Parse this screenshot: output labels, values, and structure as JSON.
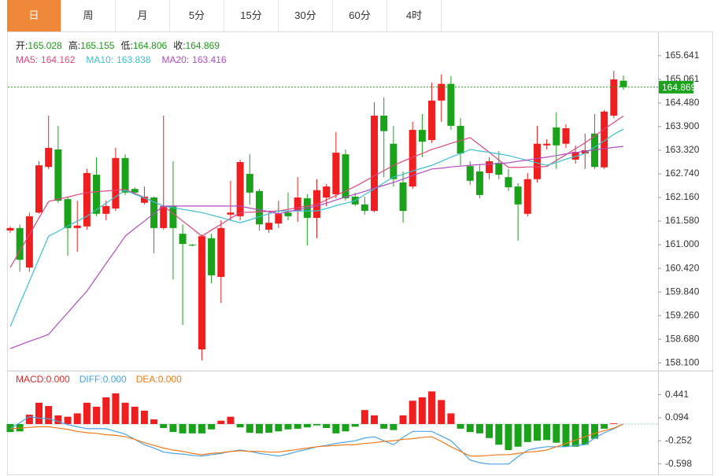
{
  "tabs": [
    "日",
    "周",
    "月",
    "5分",
    "15分",
    "30分",
    "60分",
    "4时"
  ],
  "active_tab": 0,
  "chart_data": [
    {
      "type": "candlestick",
      "ohlc_labels": [
        "开:",
        "高:",
        "低:",
        "收:"
      ],
      "open": [
        161.35,
        161.41,
        160.44,
        161.79,
        162.91,
        163.34,
        162.12,
        161.41,
        161.45,
        162.72,
        161.76,
        161.89,
        163.13,
        162.37,
        162.03,
        162.16,
        161.41,
        161.95,
        161.27,
        161.0,
        158.43,
        161.16,
        160.21,
        161.74,
        161.7,
        162.74,
        162.32,
        161.37,
        161.52,
        161.79,
        161.83,
        162.14,
        161.66,
        162.16,
        162.24,
        163.22,
        162.18,
        161.99,
        161.83,
        164.17,
        163.48,
        162.53,
        162.43,
        163.82,
        163.57,
        164.54,
        164.95,
        163.92,
        162.93,
        162.8,
        162.76,
        163.01,
        162.66,
        162.43,
        161.76,
        162.61,
        163.44,
        163.88,
        163.48,
        163.09,
        163.24,
        163.73,
        162.9,
        164.17,
        165.028
      ],
      "high": [
        161.45,
        161.5,
        161.79,
        163.05,
        164.17,
        163.92,
        162.18,
        162.08,
        162.86,
        163.15,
        162.08,
        163.38,
        163.22,
        162.41,
        162.43,
        162.18,
        164.17,
        163.05,
        161.5,
        161.02,
        161.25,
        161.27,
        161.6,
        162.57,
        163.09,
        163.22,
        162.37,
        161.79,
        162.08,
        162.28,
        162.66,
        162.24,
        162.61,
        162.49,
        163.77,
        163.34,
        162.28,
        162.18,
        164.5,
        164.62,
        163.92,
        162.8,
        164.02,
        164.21,
        164.98,
        165.18,
        165.14,
        164.11,
        163.05,
        162.95,
        163.15,
        163.3,
        162.86,
        162.51,
        162.76,
        163.92,
        163.59,
        164.25,
        163.96,
        163.44,
        163.73,
        164.21,
        164.31,
        165.27,
        165.155
      ],
      "low": [
        161.29,
        160.34,
        160.34,
        161.76,
        162.86,
        162.03,
        160.73,
        160.83,
        161.37,
        161.7,
        161.6,
        161.83,
        162.22,
        162.24,
        161.99,
        160.79,
        161.37,
        160.15,
        159.03,
        160.96,
        158.16,
        160.05,
        159.57,
        161.6,
        161.6,
        161.99,
        161.35,
        161.29,
        161.41,
        161.6,
        161.56,
        160.98,
        161.16,
        161.95,
        162.14,
        162.08,
        161.95,
        161.74,
        161.79,
        162.66,
        162.43,
        161.54,
        162.37,
        163.15,
        163.5,
        164.02,
        163.82,
        162.95,
        162.47,
        162.14,
        162.61,
        162.61,
        162.32,
        161.1,
        161.7,
        162.53,
        163.34,
        162.86,
        163.38,
        162.99,
        162.86,
        162.86,
        162.86,
        164.11,
        164.806
      ],
      "close": [
        161.41,
        160.63,
        161.7,
        162.95,
        163.38,
        162.08,
        161.41,
        161.47,
        162.76,
        161.76,
        161.95,
        163.13,
        162.28,
        162.28,
        162.18,
        161.41,
        161.95,
        161.41,
        161.02,
        160.98,
        161.21,
        160.25,
        161.41,
        161.79,
        163.03,
        162.28,
        161.5,
        161.54,
        161.76,
        161.7,
        162.16,
        161.66,
        162.34,
        162.43,
        163.26,
        162.14,
        161.99,
        161.83,
        164.17,
        163.79,
        162.61,
        161.83,
        163.82,
        163.53,
        164.54,
        164.95,
        163.92,
        163.24,
        162.57,
        162.22,
        163.05,
        162.72,
        162.41,
        161.99,
        162.61,
        163.48,
        163.48,
        163.44,
        163.86,
        163.28,
        163.32,
        162.91,
        164.27,
        165.06,
        164.869
      ],
      "up_color": "#f01e1e",
      "down_color": "#1aa31a",
      "series": [
        {
          "name": "MA5:",
          "color": "#e0457f",
          "values": [
            160.44,
            160.85,
            161.25,
            161.66,
            162.06,
            162.12,
            162.17,
            162.23,
            162.28,
            162.3,
            162.32,
            162.34,
            162.36,
            162.26,
            162.16,
            162.05,
            161.95,
            161.77,
            161.58,
            161.4,
            161.21,
            161.36,
            161.5,
            161.65,
            161.79,
            161.8,
            161.81,
            161.82,
            161.83,
            161.87,
            161.91,
            161.95,
            161.99,
            162.1,
            162.21,
            162.32,
            162.43,
            162.56,
            162.69,
            162.82,
            162.95,
            163.05,
            163.15,
            163.24,
            163.34,
            163.41,
            163.49,
            163.56,
            163.63,
            163.45,
            163.27,
            163.08,
            162.9,
            162.9,
            162.91,
            162.91,
            162.92,
            163.07,
            163.21,
            163.36,
            163.5,
            163.67,
            163.84,
            164.0,
            164.162
          ]
        },
        {
          "name": "MA10:",
          "color": "#3cbfd0",
          "values": [
            158.99,
            159.55,
            160.1,
            160.66,
            161.21,
            161.33,
            161.46,
            161.58,
            161.7,
            161.86,
            162.02,
            162.18,
            162.34,
            162.24,
            162.15,
            162.05,
            161.95,
            161.91,
            161.87,
            161.83,
            161.79,
            161.73,
            161.67,
            161.6,
            161.54,
            161.61,
            161.69,
            161.76,
            161.83,
            161.83,
            161.83,
            161.83,
            161.83,
            161.89,
            161.96,
            162.02,
            162.08,
            162.23,
            162.37,
            162.52,
            162.66,
            162.73,
            162.81,
            162.88,
            162.95,
            163.05,
            163.15,
            163.24,
            163.34,
            163.3,
            163.27,
            163.23,
            163.19,
            163.13,
            163.07,
            163.01,
            162.95,
            163.02,
            163.1,
            163.17,
            163.24,
            163.4,
            163.55,
            163.71,
            163.838
          ]
        },
        {
          "name": "MA20:",
          "color": "#b04cc0",
          "values": [
            158.45,
            158.54,
            158.63,
            158.71,
            158.8,
            159.07,
            159.33,
            159.6,
            159.86,
            160.2,
            160.54,
            160.87,
            161.21,
            161.4,
            161.58,
            161.77,
            161.95,
            161.95,
            161.95,
            161.95,
            161.95,
            161.95,
            161.95,
            161.95,
            161.95,
            161.9,
            161.86,
            161.81,
            161.76,
            161.81,
            161.86,
            161.9,
            161.95,
            162.02,
            162.1,
            162.17,
            162.24,
            162.31,
            162.39,
            162.46,
            162.53,
            162.61,
            162.7,
            162.78,
            162.86,
            162.88,
            162.91,
            162.93,
            162.95,
            162.97,
            162.98,
            163.0,
            163.01,
            163.05,
            163.08,
            163.12,
            163.15,
            163.19,
            163.23,
            163.26,
            163.3,
            163.33,
            163.36,
            163.39,
            163.416
          ]
        }
      ],
      "ylim": [
        157.93,
        166.14
      ],
      "yticks": [
        165.641,
        165.061,
        {
          "value": 164.48,
          "label": "164.480"
        },
        {
          "value": 163.9,
          "label": "163.900"
        },
        {
          "value": 163.32,
          "label": "163.320"
        },
        {
          "value": 162.74,
          "label": "162.740"
        },
        {
          "value": 162.16,
          "label": "162.160"
        },
        {
          "value": 161.58,
          "label": "161.580"
        },
        {
          "value": 161,
          "label": "161.000"
        },
        {
          "value": 160.42,
          "label": "160.420"
        },
        {
          "value": 159.84,
          "label": "159.840"
        },
        {
          "value": 159.26,
          "label": "159.260"
        },
        {
          "value": 158.68,
          "label": "158.680"
        },
        {
          "value": 158.1,
          "label": "158.100"
        }
      ]
    },
    {
      "type": "macd",
      "series": [
        {
          "name": "MACD:",
          "legend_label": "0.000",
          "color": "#e02828",
          "up_color": "#f01e1e",
          "down_color": "#1aa31a",
          "values": [
            -0.12,
            -0.11,
            0.14,
            0.32,
            0.27,
            0.13,
            0.11,
            0.16,
            0.32,
            0.26,
            0.4,
            0.46,
            0.32,
            0.26,
            0.2,
            0.07,
            -0.06,
            -0.12,
            -0.14,
            -0.14,
            -0.14,
            -0.08,
            0.05,
            0.11,
            -0.05,
            -0.13,
            -0.14,
            -0.13,
            -0.11,
            -0.08,
            -0.07,
            -0.05,
            -0.02,
            -0.06,
            -0.14,
            -0.11,
            -0.04,
            0.21,
            0.13,
            -0.07,
            -0.09,
            0.13,
            0.35,
            0.4,
            0.49,
            0.36,
            0.16,
            -0.07,
            -0.12,
            -0.14,
            -0.21,
            -0.31,
            -0.39,
            -0.34,
            -0.27,
            -0.25,
            -0.24,
            -0.28,
            -0.34,
            -0.34,
            -0.31,
            -0.22,
            -0.07,
            0.01,
            0
          ]
        },
        {
          "name": "DIFF:",
          "legend_label": "0.000",
          "color": "#4aa3e6",
          "values": [
            -0.07,
            0.02,
            0.11,
            0.09,
            0.08,
            0.04,
            -0.01,
            -0.04,
            -0.07,
            -0.07,
            -0.07,
            -0.11,
            -0.15,
            -0.23,
            -0.31,
            -0.36,
            -0.42,
            -0.44,
            -0.45,
            -0.47,
            -0.48,
            -0.46,
            -0.44,
            -0.41,
            -0.39,
            -0.41,
            -0.44,
            -0.46,
            -0.48,
            -0.45,
            -0.41,
            -0.38,
            -0.34,
            -0.32,
            -0.29,
            -0.27,
            -0.25,
            -0.21,
            -0.19,
            -0.25,
            -0.31,
            -0.2,
            -0.11,
            -0.11,
            -0.11,
            -0.18,
            -0.25,
            -0.39,
            -0.54,
            -0.58,
            -0.6,
            -0.6,
            -0.6,
            -0.49,
            -0.39,
            -0.36,
            -0.34,
            -0.34,
            -0.34,
            -0.32,
            -0.31,
            -0.21,
            -0.13,
            -0.07,
            0
          ]
        },
        {
          "name": "DEA:",
          "legend_label": "0.000",
          "color": "#ef7a1a",
          "values": [
            -0.07,
            -0.06,
            -0.05,
            -0.04,
            -0.04,
            -0.06,
            -0.08,
            -0.11,
            -0.13,
            -0.14,
            -0.16,
            -0.17,
            -0.19,
            -0.23,
            -0.28,
            -0.32,
            -0.36,
            -0.39,
            -0.41,
            -0.44,
            -0.46,
            -0.44,
            -0.43,
            -0.41,
            -0.4,
            -0.41,
            -0.41,
            -0.42,
            -0.42,
            -0.4,
            -0.38,
            -0.36,
            -0.34,
            -0.33,
            -0.32,
            -0.31,
            -0.31,
            -0.29,
            -0.28,
            -0.26,
            -0.25,
            -0.23,
            -0.22,
            -0.2,
            -0.19,
            -0.26,
            -0.34,
            -0.41,
            -0.48,
            -0.48,
            -0.47,
            -0.46,
            -0.46,
            -0.44,
            -0.42,
            -0.41,
            -0.39,
            -0.34,
            -0.29,
            -0.24,
            -0.19,
            -0.14,
            -0.1,
            -0.06,
            0
          ]
        }
      ],
      "ylim": [
        -0.72,
        0.79
      ],
      "yticks": [
        0.441,
        0.094,
        -0.252,
        -0.598
      ]
    }
  ]
}
